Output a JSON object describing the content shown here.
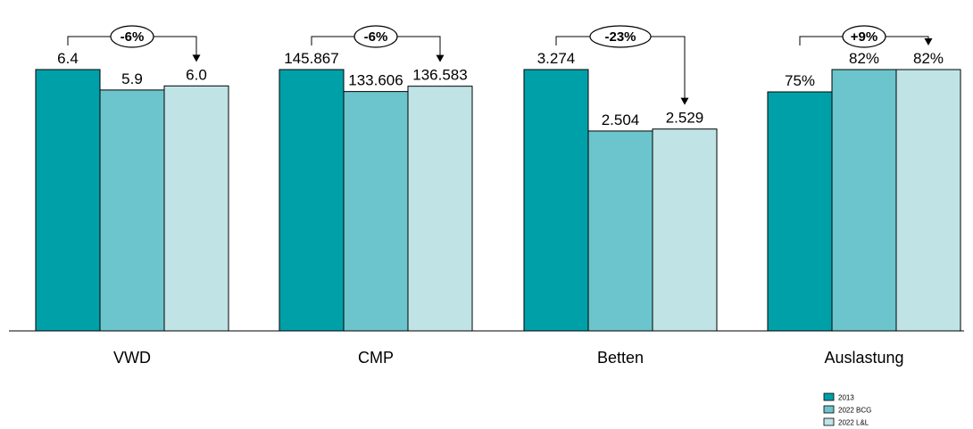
{
  "chart_data": {
    "type": "bar",
    "categories": [
      "VWD",
      "CMP",
      "Betten",
      "Auslastung"
    ],
    "series": [
      {
        "name": "2013",
        "color": "#00A0A8"
      },
      {
        "name": "2022 BCG",
        "color": "#6CC5CC"
      },
      {
        "name": "2022 L&L",
        "color": "#C0E4E6"
      }
    ],
    "groups": [
      {
        "category": "VWD",
        "values": [
          6.4,
          5.9,
          6.0
        ],
        "labels": [
          "6.4",
          "5.9",
          "6.0"
        ],
        "change": "-6%"
      },
      {
        "category": "CMP",
        "values": [
          145.867,
          133.606,
          136.583
        ],
        "labels": [
          "145.867",
          "133.606",
          "136.583"
        ],
        "change": "-6%"
      },
      {
        "category": "Betten",
        "values": [
          3.274,
          2.504,
          2.529
        ],
        "labels": [
          "3.274",
          "2.504",
          "2.529"
        ],
        "change": "-23%"
      },
      {
        "category": "Auslastung",
        "values": [
          75,
          82,
          82
        ],
        "labels": [
          "75%",
          "82%",
          "82%"
        ],
        "change": "+9%"
      }
    ],
    "title": "",
    "xlabel": "",
    "ylabel": "",
    "grid": false,
    "legend_position": "bottom-right"
  }
}
